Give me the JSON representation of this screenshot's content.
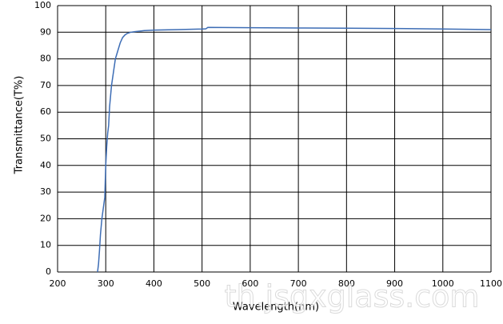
{
  "chart_data": {
    "type": "line",
    "xlabel": "Wavelength(nm)",
    "ylabel": "Transmittance(T%)",
    "watermark": "th.jsgxglass.com",
    "x": [
      283,
      285,
      287,
      289,
      292,
      295,
      298,
      300,
      302,
      304,
      306,
      308,
      310,
      312,
      316,
      320,
      325,
      330,
      335,
      340,
      345,
      352,
      360,
      380,
      400,
      450,
      500,
      508,
      512,
      600,
      700,
      800,
      900,
      1000,
      1100
    ],
    "values": [
      0,
      3,
      8,
      14,
      20,
      24,
      28,
      40,
      47,
      52,
      55,
      62,
      66,
      70,
      75,
      80,
      83,
      86,
      88,
      89,
      89.6,
      90,
      90.2,
      90.6,
      90.8,
      91,
      91.2,
      91.3,
      91.8,
      91.7,
      91.6,
      91.5,
      91.4,
      91.2,
      91
    ],
    "color": "#3d6db5",
    "xlim": [
      200,
      1100
    ],
    "ylim": [
      0,
      100
    ],
    "xticks": [
      200,
      300,
      400,
      500,
      600,
      700,
      800,
      900,
      1000,
      1100
    ],
    "yticks": [
      0,
      10,
      20,
      30,
      40,
      50,
      60,
      70,
      80,
      90,
      100
    ],
    "grid": true
  }
}
